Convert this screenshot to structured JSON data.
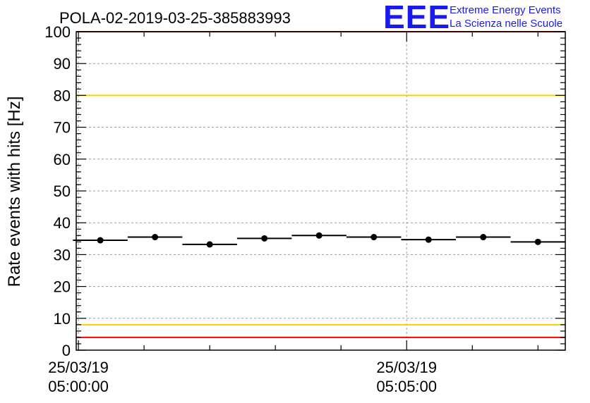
{
  "chart_data": {
    "type": "scatter",
    "title": "POLA-02-2019-03-25-385883993",
    "ylabel": "Rate events with hits [Hz]",
    "xlabel": "",
    "ylim": [
      0,
      100
    ],
    "y_ticks": [
      0,
      10,
      20,
      30,
      40,
      50,
      60,
      70,
      80,
      90,
      100
    ],
    "x_ticks": [
      {
        "date": "25/03/19",
        "time": "05:00:00",
        "t": 0
      },
      {
        "date": "25/03/19",
        "time": "05:05:00",
        "t": 300
      }
    ],
    "xlim": [
      -2,
      445
    ],
    "grid": true,
    "series": [
      {
        "points": [
          {
            "x": 20,
            "xerr": 25,
            "y": 34.5
          },
          {
            "x": 70,
            "xerr": 25,
            "y": 35.5
          },
          {
            "x": 120,
            "xerr": 25,
            "y": 33.2
          },
          {
            "x": 170,
            "xerr": 25,
            "y": 35.1
          },
          {
            "x": 220,
            "xerr": 25,
            "y": 36.0
          },
          {
            "x": 270,
            "xerr": 25,
            "y": 35.5
          },
          {
            "x": 320,
            "xerr": 25,
            "y": 34.7
          },
          {
            "x": 370,
            "xerr": 25,
            "y": 35.5
          },
          {
            "x": 420,
            "xerr": 25,
            "y": 34.0
          }
        ]
      }
    ],
    "reference_lines": [
      {
        "y": 100,
        "color": "#ff0000"
      },
      {
        "y": 80,
        "color": "#ffcc00"
      },
      {
        "y": 8,
        "color": "#ffcc00"
      },
      {
        "y": 4,
        "color": "#ff0000"
      }
    ]
  },
  "logo": {
    "mark": "EEE",
    "line1": "Extreme Energy Events",
    "line2": "La Scienza nelle Scuole",
    "color": "#1a1aee"
  }
}
